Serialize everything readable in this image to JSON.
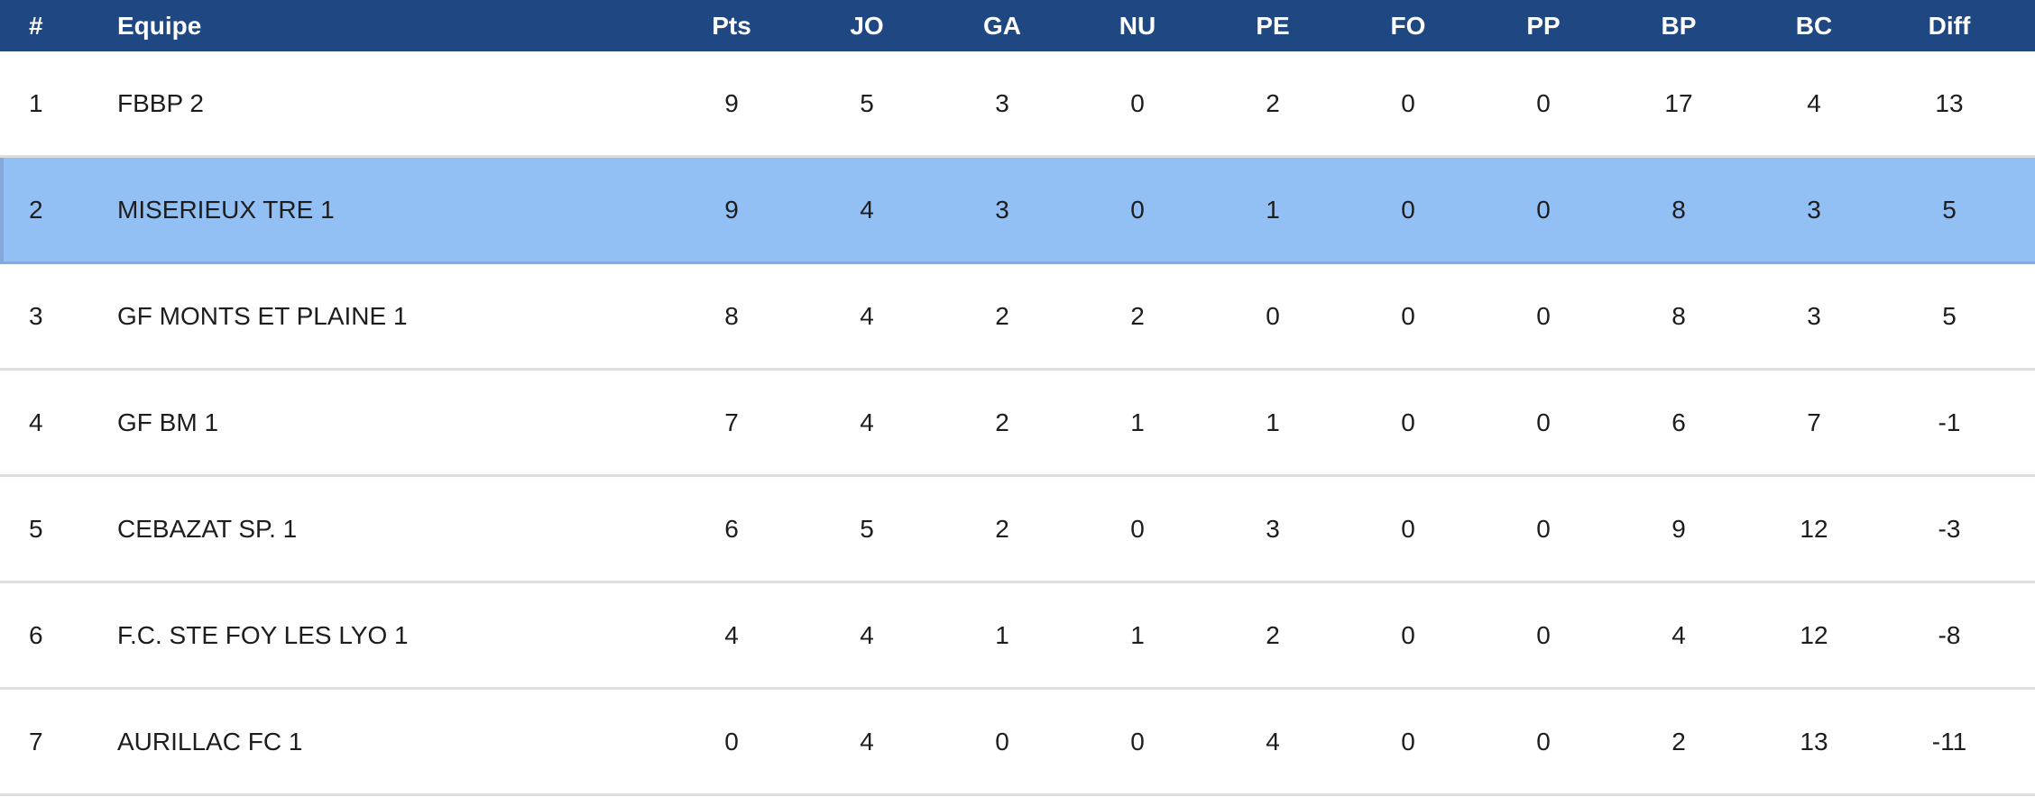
{
  "colors": {
    "header_background": "#1F4782",
    "header_text": "#FFFFFF",
    "row_background": "#FFFFFF",
    "row_text": "#1D1D1D",
    "highlight_background": "#92C0F5",
    "highlight_border": "#85A9DA",
    "divider": "#DCDEE0"
  },
  "table": {
    "columns": [
      {
        "key": "rank",
        "label": "#"
      },
      {
        "key": "equipe",
        "label": "Equipe"
      },
      {
        "key": "pts",
        "label": "Pts"
      },
      {
        "key": "jo",
        "label": "JO"
      },
      {
        "key": "ga",
        "label": "GA"
      },
      {
        "key": "nu",
        "label": "NU"
      },
      {
        "key": "pe",
        "label": "PE"
      },
      {
        "key": "fo",
        "label": "FO"
      },
      {
        "key": "pp",
        "label": "PP"
      },
      {
        "key": "bp",
        "label": "BP"
      },
      {
        "key": "bc",
        "label": "BC"
      },
      {
        "key": "diff",
        "label": "Diff"
      }
    ],
    "rows": [
      {
        "highlighted": false,
        "cells": [
          "1",
          "FBBP 2",
          "9",
          "5",
          "3",
          "0",
          "2",
          "0",
          "0",
          "17",
          "4",
          "13"
        ]
      },
      {
        "highlighted": true,
        "cells": [
          "2",
          "MISERIEUX TRE 1",
          "9",
          "4",
          "3",
          "0",
          "1",
          "0",
          "0",
          "8",
          "3",
          "5"
        ]
      },
      {
        "highlighted": false,
        "cells": [
          "3",
          "GF MONTS ET PLAINE 1",
          "8",
          "4",
          "2",
          "2",
          "0",
          "0",
          "0",
          "8",
          "3",
          "5"
        ]
      },
      {
        "highlighted": false,
        "cells": [
          "4",
          "GF BM 1",
          "7",
          "4",
          "2",
          "1",
          "1",
          "0",
          "0",
          "6",
          "7",
          "-1"
        ]
      },
      {
        "highlighted": false,
        "cells": [
          "5",
          "CEBAZAT SP. 1",
          "6",
          "5",
          "2",
          "0",
          "3",
          "0",
          "0",
          "9",
          "12",
          "-3"
        ]
      },
      {
        "highlighted": false,
        "cells": [
          "6",
          "F.C. STE FOY LES LYO 1",
          "4",
          "4",
          "1",
          "1",
          "2",
          "0",
          "0",
          "4",
          "12",
          "-8"
        ]
      },
      {
        "highlighted": false,
        "cells": [
          "7",
          "AURILLAC FC 1",
          "0",
          "4",
          "0",
          "0",
          "4",
          "0",
          "0",
          "2",
          "13",
          "-11"
        ]
      }
    ],
    "highlighted_team": "MISERIEUX TRE 1"
  }
}
